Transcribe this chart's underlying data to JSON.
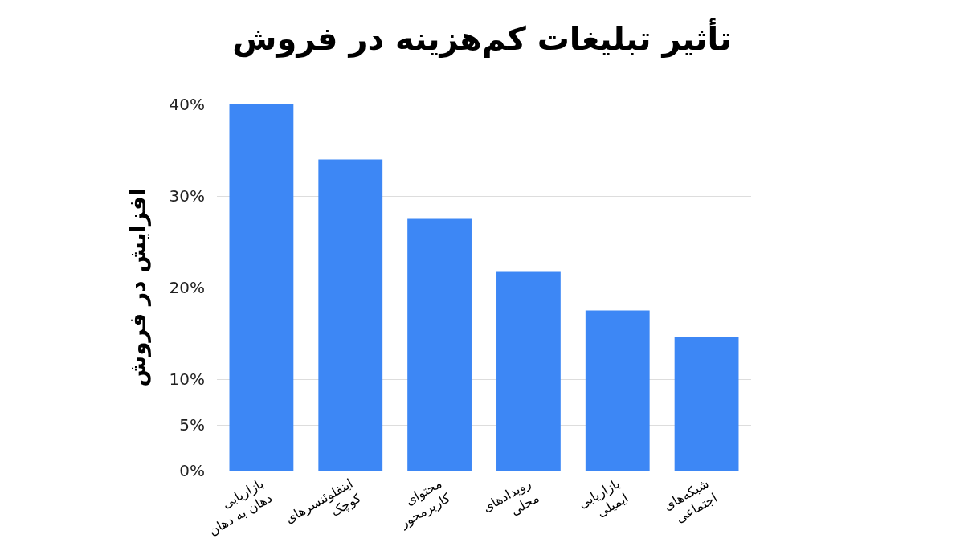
{
  "chart_data": {
    "type": "bar",
    "title": "تأثیر تبلیغات کم‌هزینه در فروش",
    "ylabel": "افزایش در فروش",
    "categories": [
      "بازاریابی\nدهان به دهان",
      "اینفلوئنسرهای\nکوچک",
      "محتوای\nکاربرمحور",
      "رویدادهای\nمحلی",
      "بازاریابی\nایمیلی",
      "شبکه‌های\nاجتماعی"
    ],
    "values": [
      40,
      34,
      27.5,
      21.7,
      17.5,
      14.6
    ],
    "color": "#3d87f5",
    "ylim": [
      0,
      40
    ],
    "yticks": [
      {
        "value": 0,
        "label": "0%"
      },
      {
        "value": 5,
        "label": "5%"
      },
      {
        "value": 10,
        "label": "10%"
      },
      {
        "value": 20,
        "label": "20%"
      },
      {
        "value": 30,
        "label": "30%"
      },
      {
        "value": 40,
        "label": "40%"
      }
    ],
    "grid": "y"
  }
}
